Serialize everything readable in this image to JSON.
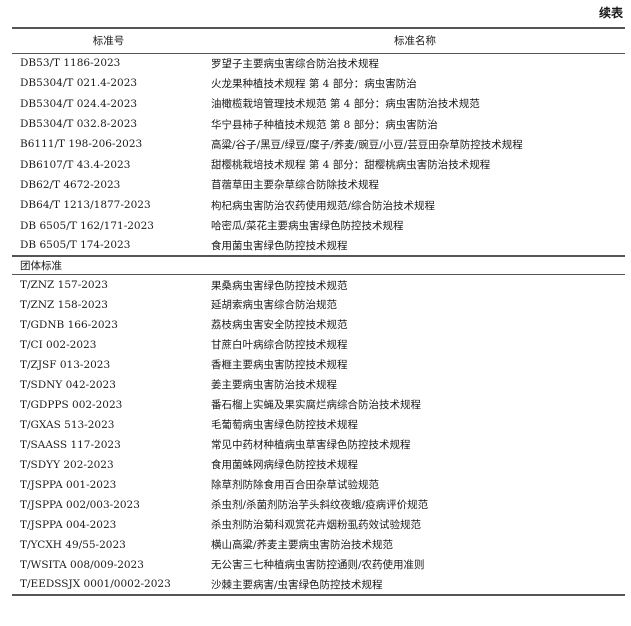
{
  "continued_label": "续表",
  "headers": {
    "code": "标准号",
    "name": "标准名称"
  },
  "rows_local": [
    {
      "code": "DB53/T 1186-2023",
      "name": "罗望子主要病虫害综合防治技术规程"
    },
    {
      "code": "DB5304/T 021.4-2023",
      "name": "火龙果种植技术规程 第 4 部分：病虫害防治"
    },
    {
      "code": "DB5304/T 024.4-2023",
      "name": "油橄榄栽培管理技术规范 第 4 部分：病虫害防治技术规范"
    },
    {
      "code": "DB5304/T 032.8-2023",
      "name": "华宁县柿子种植技术规范 第 8 部分：病虫害防治"
    },
    {
      "code": "B6111/T 198-206-2023",
      "name": "高粱/谷子/黑豆/绿豆/糜子/荞麦/豌豆/小豆/芸豆田杂草防控技术规程"
    },
    {
      "code": "DB6107/T 43.4-2023",
      "name": "甜樱桃栽培技术规程 第 4 部分：甜樱桃病虫害防治技术规程"
    },
    {
      "code": "DB62/T 4672-2023",
      "name": "苜蓿草田主要杂草综合防除技术规程"
    },
    {
      "code": "DB64/T 1213/1877-2023",
      "name": "枸杞病虫害防治农药使用规范/综合防治技术规程"
    },
    {
      "code": "DB 6505/T 162/171-2023",
      "name": "哈密瓜/菜花主要病虫害绿色防控技术规程"
    },
    {
      "code": "DB 6505/T 174-2023",
      "name": "食用菌虫害绿色防控技术规程"
    }
  ],
  "group_label": "团体标准",
  "rows_group": [
    {
      "code": "T/ZNZ 157-2023",
      "name": "果桑病虫害绿色防控技术规范"
    },
    {
      "code": "T/ZNZ 158-2023",
      "name": "延胡索病虫害综合防治规范"
    },
    {
      "code": "T/GDNB 166-2023",
      "name": "荔枝病虫害安全防控技术规范"
    },
    {
      "code": "T/CI 002-2023",
      "name": "甘蔗白叶病综合防控技术规程"
    },
    {
      "code": "T/ZJSF 013-2023",
      "name": "香榧主要病虫害防控技术规程"
    },
    {
      "code": "T/SDNY 042-2023",
      "name": "姜主要病虫害防治技术规程"
    },
    {
      "code": "T/GDPPS 002-2023",
      "name": "番石榴上实蝇及果实腐烂病综合防治技术规程"
    },
    {
      "code": "T/GXAS 513-2023",
      "name": "毛葡萄病虫害绿色防控技术规程"
    },
    {
      "code": "T/SAASS 117-2023",
      "name": "常见中药材种植病虫草害绿色防控技术规程"
    },
    {
      "code": "T/SDYY 202-2023",
      "name": "食用菌蛛网病绿色防控技术规程"
    },
    {
      "code": "T/JSPPA 001-2023",
      "name": "除草剂防除食用百合田杂草试验规范"
    },
    {
      "code": "T/JSPPA 002/003-2023",
      "name": "杀虫剂/杀菌剂防治芋头斜纹夜蛾/疫病评价规范"
    },
    {
      "code": "T/JSPPA 004-2023",
      "name": "杀虫剂防治菊科观赏花卉烟粉虱药效试验规范"
    },
    {
      "code": "T/YCXH 49/55-2023",
      "name": "横山高粱/荞麦主要病虫害防治技术规范"
    },
    {
      "code": "T/WSITA 008/009-2023",
      "name": "无公害三七种植病虫害防控通则/农药使用准则"
    },
    {
      "code": "T/EEDSSJX 0001/0002-2023",
      "name": "沙棘主要病害/虫害绿色防控技术规程"
    }
  ]
}
